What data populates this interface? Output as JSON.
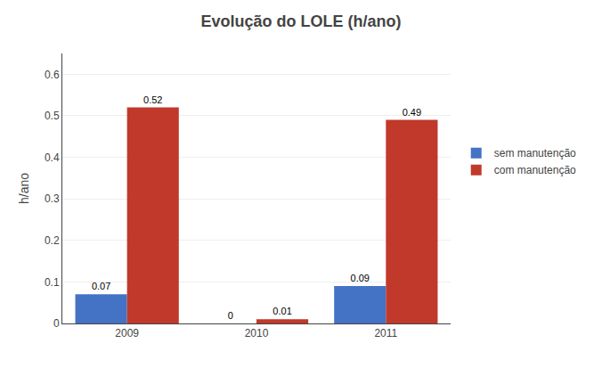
{
  "chart_data": {
    "type": "bar",
    "title": "Evolução do LOLE (h/ano)",
    "ylabel": "h/ano",
    "categories": [
      "2009",
      "2010",
      "2011"
    ],
    "series": [
      {
        "name": "sem manutenção",
        "color": "#4472C4",
        "values": [
          0.07,
          0.0,
          0.09
        ]
      },
      {
        "name": "com manutenção",
        "color": "#C0392B",
        "values": [
          0.52,
          0.01,
          0.49
        ]
      }
    ],
    "ylim": [
      0,
      0.65
    ],
    "yticks": [
      0,
      0.1,
      0.2,
      0.3,
      0.4,
      0.5,
      0.6
    ],
    "grid": true,
    "legend": "right",
    "data_labels": true
  }
}
